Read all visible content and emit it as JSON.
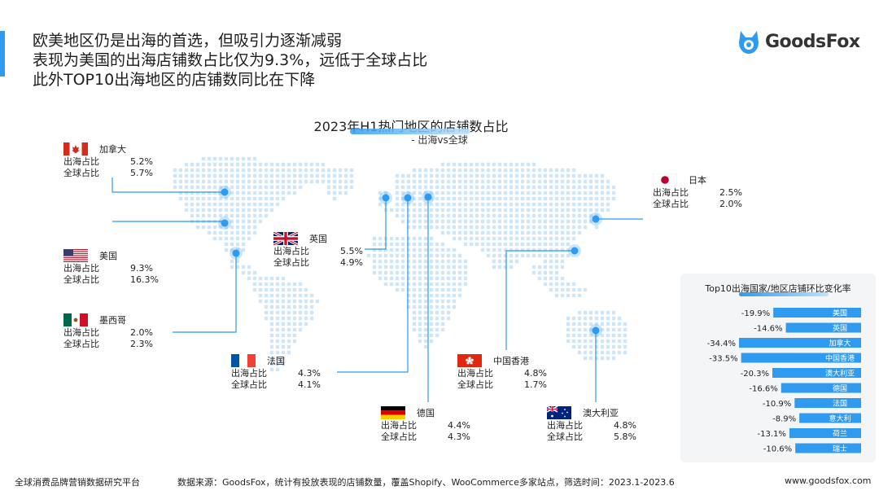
{
  "headline": [
    "欧美地区仍是出海的首选，但吸引力逐渐减弱",
    "表现为美国的出海店铺数占比仅为9.3%，远低于全球占比",
    "此外TOP10出海地区的店铺数同比在下降"
  ],
  "brand": "GoodsFox",
  "footer": {
    "left": "全球消费品牌营销数据研究平台",
    "source": "数据来源：GoodsFox，统计有投放表现的店铺数量，覆盖Shopify、WooCommerce多家站点，筛选时间：2023.1-2023.6",
    "url": "www.goodsfox.com"
  },
  "colors": {
    "accent": "#2e9bf0",
    "bar": "#2e9bf0",
    "map_dot": "#cfe6f8",
    "panel_bg": "#f4f5f7"
  },
  "chart_data": [
    {
      "type": "table",
      "title": "2023年H1热门地区的店铺数占比",
      "subtitle": "- 出海vs全球",
      "row_labels": [
        "出海占比",
        "全球占比"
      ],
      "regions": [
        {
          "name": "加拿大",
          "flag": "ca-flag-icon",
          "overseas": "5.2%",
          "global": "5.7%"
        },
        {
          "name": "美国",
          "flag": "us-flag-icon",
          "overseas": "9.3%",
          "global": "16.3%"
        },
        {
          "name": "墨西哥",
          "flag": "mx-flag-icon",
          "overseas": "2.0%",
          "global": "2.3%"
        },
        {
          "name": "英国",
          "flag": "uk-flag-icon",
          "overseas": "5.5%",
          "global": "4.9%"
        },
        {
          "name": "法国",
          "flag": "fr-flag-icon",
          "overseas": "4.3%",
          "global": "4.1%"
        },
        {
          "name": "德国",
          "flag": "de-flag-icon",
          "overseas": "4.4%",
          "global": "4.3%"
        },
        {
          "name": "中国香港",
          "flag": "hk-flag-icon",
          "overseas": "4.8%",
          "global": "1.7%"
        },
        {
          "name": "澳大利亚",
          "flag": "au-flag-icon",
          "overseas": "4.8%",
          "global": "5.8%"
        },
        {
          "name": "日本",
          "flag": "jp-flag-icon",
          "overseas": "2.5%",
          "global": "2.0%"
        }
      ]
    },
    {
      "type": "bar",
      "title": "Top10出海国家/地区店铺环比变化率",
      "categories": [
        "美国",
        "英国",
        "加拿大",
        "中国香港",
        "澳大利亚",
        "德国",
        "法国",
        "意大利",
        "荷兰",
        "瑞士"
      ],
      "values": [
        -19.9,
        -14.6,
        -34.4,
        -33.5,
        -20.3,
        -16.6,
        -10.9,
        -8.9,
        -13.1,
        -10.6
      ],
      "unit": "%"
    }
  ]
}
